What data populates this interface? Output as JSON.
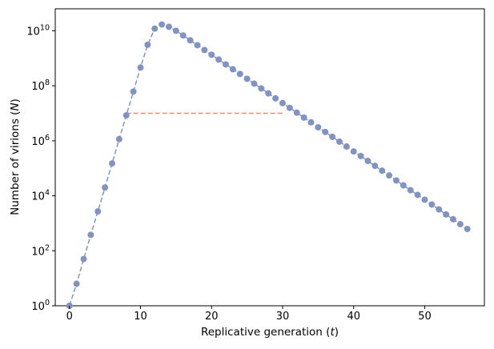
{
  "chart_data": {
    "type": "scatter",
    "title": "",
    "xlabel": {
      "text": "Replicative generation ",
      "var": "t"
    },
    "ylabel": {
      "text": "Number of virions ",
      "var": "N"
    },
    "x_ticks": [
      0,
      10,
      20,
      30,
      40,
      50
    ],
    "y_ticks": [
      {
        "value": 1,
        "base": "10",
        "exp": "0"
      },
      {
        "value": 100,
        "base": "10",
        "exp": "2"
      },
      {
        "value": 10000,
        "base": "10",
        "exp": "4"
      },
      {
        "value": 1000000,
        "base": "10",
        "exp": "6"
      },
      {
        "value": 100000000,
        "base": "10",
        "exp": "8"
      },
      {
        "value": 10000000000,
        "base": "10",
        "exp": "10"
      }
    ],
    "xlim": [
      -2,
      58.4
    ],
    "ylim": [
      1,
      63095734448
    ],
    "yscale": "log",
    "grid": false,
    "legend": "none",
    "series": [
      {
        "kind": "points-with-dashed-line",
        "color": "#8094c4",
        "x": [
          0,
          1,
          2,
          3,
          4,
          5,
          6,
          7,
          8,
          9,
          10,
          11,
          12,
          13,
          14,
          15,
          16,
          17,
          18,
          19,
          20,
          21,
          22,
          23,
          24,
          25,
          26,
          27,
          28,
          29,
          30,
          31,
          32,
          33,
          34,
          35,
          36,
          37,
          38,
          39,
          40,
          41,
          42,
          43,
          44,
          45,
          46,
          47,
          48,
          49,
          50,
          51,
          52,
          53,
          54,
          55,
          56
        ],
        "y": [
          1,
          6.3,
          50,
          380,
          2700,
          20000,
          150000,
          1150000,
          8400000,
          62000000,
          460000000,
          3100000000,
          12000000000,
          17000000000,
          14000000000,
          10000000000,
          6800000000,
          4500000000,
          3000000000,
          2000000000,
          1350000000,
          900000000,
          600000000,
          400000000,
          270000000,
          180000000,
          120000000,
          80000000,
          53000000,
          35000000,
          23500000,
          15800000,
          10500000,
          7000000,
          4700000,
          3100000,
          2100000,
          1400000,
          930000,
          620000,
          410000,
          280000,
          185000,
          123000,
          82000,
          55000,
          36000,
          24000,
          16000,
          10800,
          7200,
          4800,
          3200,
          2100,
          1400,
          930,
          620
        ]
      },
      {
        "kind": "dashed-line",
        "color": "#ef8a6a",
        "x": [
          8,
          30
        ],
        "y": [
          10000000,
          10000000
        ]
      }
    ]
  }
}
